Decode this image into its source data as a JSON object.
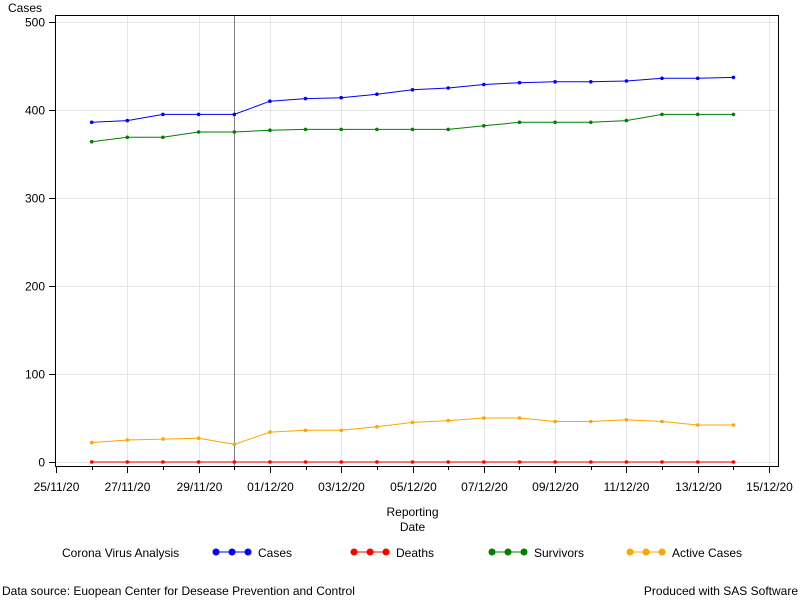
{
  "chart_data": {
    "type": "line",
    "ylabel": "Cases",
    "xlabel_line1": "Reporting",
    "xlabel_line2": "Date",
    "ylim": [
      0,
      500
    ],
    "yticks": [
      0,
      100,
      200,
      300,
      400,
      500
    ],
    "xlim": [
      "2020-11-25",
      "2020-12-15"
    ],
    "xtick_labels": [
      "25/11/20",
      "27/11/20",
      "29/11/20",
      "01/12/20",
      "03/12/20",
      "05/12/20",
      "07/12/20",
      "09/12/20",
      "11/12/20",
      "13/12/20",
      "15/12/20"
    ],
    "x": [
      "2020-11-26",
      "2020-11-27",
      "2020-11-28",
      "2020-11-29",
      "2020-11-30",
      "2020-12-01",
      "2020-12-02",
      "2020-12-03",
      "2020-12-04",
      "2020-12-05",
      "2020-12-06",
      "2020-12-07",
      "2020-12-08",
      "2020-12-09",
      "2020-12-10",
      "2020-12-11",
      "2020-12-12",
      "2020-12-13",
      "2020-12-14"
    ],
    "reference_line_x": "2020-11-30",
    "grid": true,
    "legend_title": "Corona Virus Analysis",
    "legend_position": "bottom",
    "series": [
      {
        "name": "Cases",
        "color": "#0000ff",
        "values": [
          386,
          388,
          395,
          395,
          395,
          410,
          413,
          414,
          418,
          423,
          425,
          429,
          431,
          432,
          432,
          433,
          436,
          436,
          437
        ]
      },
      {
        "name": "Deaths",
        "color": "#ff0000",
        "values": [
          0,
          0,
          0,
          0,
          0,
          0,
          0,
          0,
          0,
          0,
          0,
          0,
          0,
          0,
          0,
          0,
          0,
          0,
          0
        ]
      },
      {
        "name": "Survivors",
        "color": "#008000",
        "values": [
          364,
          369,
          369,
          375,
          375,
          377,
          378,
          378,
          378,
          378,
          378,
          382,
          386,
          386,
          386,
          388,
          395,
          395,
          395
        ]
      },
      {
        "name": "Active Cases",
        "color": "#ffa500",
        "values": [
          22,
          25,
          26,
          27,
          20,
          34,
          36,
          36,
          40,
          45,
          47,
          50,
          50,
          46,
          46,
          48,
          46,
          42,
          42
        ]
      }
    ]
  },
  "footer": {
    "source": "Data source: Euopean Center for Desease Prevention and Control",
    "credit": "Produced with SAS Software"
  }
}
